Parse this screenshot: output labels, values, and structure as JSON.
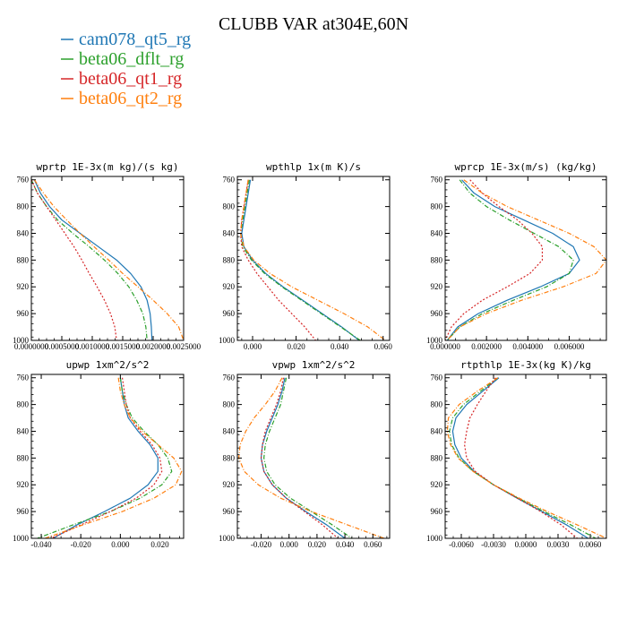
{
  "figure": {
    "title": "CLUBB VAR at304E,60N"
  },
  "colors": {
    "cam078_qt5_rg": "#1f77b4",
    "beta06_dflt_rg": "#2ca02c",
    "beta06_qt1_rg": "#d62728",
    "beta06_qt2_rg": "#ff7f0e"
  },
  "legend": [
    {
      "name": "cam078_qt5_rg",
      "color": "#1f77b4"
    },
    {
      "name": "beta06_dflt_rg",
      "color": "#2ca02c"
    },
    {
      "name": "beta06_qt1_rg",
      "color": "#d62728"
    },
    {
      "name": "beta06_qt2_rg",
      "color": "#ff7f0e"
    }
  ],
  "chart_data": [
    {
      "type": "line",
      "title": "wprtp  1E-3x(m kg)/(s kg)",
      "xlim": [
        0,
        0.0025
      ],
      "ylim": [
        1000,
        755
      ],
      "xticks": [
        0,
        0.0005,
        0.001,
        0.0015,
        0.002,
        0.0025
      ],
      "xticklabels": [
        "0.0000000",
        "0.0005000",
        "0.0010000",
        "0.0015000",
        "0.0020000",
        "0.0025000"
      ],
      "yticks": [
        760,
        800,
        840,
        880,
        920,
        960,
        1000
      ],
      "y": [
        760,
        780,
        800,
        820,
        840,
        860,
        880,
        900,
        920,
        940,
        960,
        980,
        1000
      ],
      "series": [
        {
          "name": "cam078_qt5_rg",
          "values": [
            5e-05,
            0.00015,
            0.0003,
            0.0005,
            0.0008,
            0.0011,
            0.0014,
            0.00163,
            0.0018,
            0.0019,
            0.00195,
            0.00197,
            0.00198
          ]
        },
        {
          "name": "beta06_dflt_rg",
          "values": [
            0.0,
            0.0001,
            0.00025,
            0.00043,
            0.00068,
            0.00095,
            0.0012,
            0.00142,
            0.0016,
            0.00173,
            0.00183,
            0.00188,
            0.0019
          ]
        },
        {
          "name": "beta06_qt1_rg",
          "values": [
            0.0,
            0.0001,
            0.00025,
            0.0004,
            0.00055,
            0.0007,
            0.00083,
            0.00095,
            0.00108,
            0.0012,
            0.0013,
            0.00137,
            0.0014
          ]
        },
        {
          "name": "beta06_qt2_rg",
          "values": [
            5e-05,
            0.0002,
            0.00037,
            0.00058,
            0.0008,
            0.00103,
            0.00127,
            0.0015,
            0.00175,
            0.002,
            0.00223,
            0.00242,
            0.0025
          ]
        }
      ]
    },
    {
      "type": "line",
      "title": "wpthlp  1x(m K)/s",
      "xlim": [
        -0.007,
        0.063
      ],
      "ylim": [
        1000,
        755
      ],
      "xticks": [
        0,
        0.02,
        0.04,
        0.06
      ],
      "xticklabels": [
        "0.000",
        "0.020",
        "0.040",
        "0.060"
      ],
      "yticks": [
        760,
        800,
        840,
        880,
        920,
        960,
        1000
      ],
      "y": [
        760,
        780,
        800,
        820,
        840,
        860,
        880,
        900,
        920,
        940,
        960,
        980,
        1000
      ],
      "series": [
        {
          "name": "cam078_qt5_rg",
          "values": [
            -0.001,
            -0.002,
            -0.003,
            -0.004,
            -0.005,
            -0.004,
            0.0,
            0.006,
            0.014,
            0.023,
            0.032,
            0.041,
            0.049
          ]
        },
        {
          "name": "beta06_dflt_rg",
          "values": [
            -0.0015,
            -0.0025,
            -0.0035,
            -0.0045,
            -0.0055,
            -0.0045,
            -0.0005,
            0.0055,
            0.0135,
            0.0225,
            0.0315,
            0.0405,
            0.0495
          ]
        },
        {
          "name": "beta06_qt1_rg",
          "values": [
            -0.002,
            -0.003,
            -0.004,
            -0.005,
            -0.0055,
            -0.005,
            -0.002,
            0.002,
            0.007,
            0.012,
            0.018,
            0.024,
            0.029
          ]
        },
        {
          "name": "beta06_qt2_rg",
          "values": [
            -0.002,
            -0.003,
            -0.004,
            -0.005,
            -0.0055,
            -0.004,
            0.0005,
            0.008,
            0.018,
            0.03,
            0.042,
            0.053,
            0.061
          ]
        }
      ]
    },
    {
      "type": "line",
      "title": "wprcp  1E-3x(m/s) (kg/kg)",
      "xlim": [
        0,
        0.0078
      ],
      "ylim": [
        1000,
        755
      ],
      "xticks": [
        0,
        0.002,
        0.004,
        0.006
      ],
      "xticklabels": [
        "0.000000",
        "0.002000",
        "0.004000",
        "0.006000"
      ],
      "yticks": [
        760,
        800,
        840,
        880,
        920,
        960,
        1000
      ],
      "y": [
        760,
        780,
        800,
        820,
        840,
        860,
        880,
        900,
        920,
        940,
        960,
        980,
        1000
      ],
      "series": [
        {
          "name": "cam078_qt5_rg",
          "values": [
            0.0008,
            0.0014,
            0.0024,
            0.0038,
            0.0052,
            0.0062,
            0.0065,
            0.006,
            0.0046,
            0.003,
            0.0016,
            0.0006,
            0.0001
          ]
        },
        {
          "name": "beta06_dflt_rg",
          "values": [
            0.0007,
            0.0012,
            0.002,
            0.0031,
            0.0043,
            0.0055,
            0.0062,
            0.006,
            0.0049,
            0.0033,
            0.0018,
            0.0007,
            0.0001
          ]
        },
        {
          "name": "beta06_qt1_rg",
          "values": [
            0.0012,
            0.0018,
            0.0026,
            0.0035,
            0.0042,
            0.0047,
            0.0047,
            0.0041,
            0.003,
            0.0018,
            0.0009,
            0.0003,
            0.0
          ]
        },
        {
          "name": "beta06_qt2_rg",
          "values": [
            0.0009,
            0.0018,
            0.003,
            0.0045,
            0.006,
            0.0072,
            0.0078,
            0.0073,
            0.0057,
            0.0037,
            0.002,
            0.0007,
            0.0001
          ]
        }
      ]
    },
    {
      "type": "line",
      "title": "upwp  1xm^2/s^2",
      "xlim": [
        -0.045,
        0.032
      ],
      "ylim": [
        1000,
        755
      ],
      "xticks": [
        -0.04,
        -0.02,
        0,
        0.02
      ],
      "xticklabels": [
        "-0.040",
        "-0.020",
        "0.000",
        "0.020"
      ],
      "yticks": [
        760,
        800,
        840,
        880,
        920,
        960,
        1000
      ],
      "y": [
        760,
        780,
        800,
        820,
        840,
        860,
        880,
        900,
        920,
        940,
        960,
        980,
        1000
      ],
      "series": [
        {
          "name": "cam078_qt5_rg",
          "values": [
            0.0,
            0.001,
            0.002,
            0.004,
            0.009,
            0.015,
            0.019,
            0.019,
            0.014,
            0.005,
            -0.008,
            -0.022,
            -0.034
          ]
        },
        {
          "name": "beta06_dflt_rg",
          "values": [
            0.0,
            0.001,
            0.003,
            0.006,
            0.012,
            0.019,
            0.024,
            0.026,
            0.021,
            0.01,
            -0.005,
            -0.024,
            -0.042
          ]
        },
        {
          "name": "beta06_qt1_rg",
          "values": [
            0.001,
            0.002,
            0.003,
            0.005,
            0.01,
            0.016,
            0.02,
            0.021,
            0.017,
            0.008,
            -0.005,
            -0.02,
            -0.035
          ]
        },
        {
          "name": "beta06_qt2_rg",
          "values": [
            -0.001,
            0.0,
            0.002,
            0.005,
            0.011,
            0.019,
            0.027,
            0.031,
            0.028,
            0.017,
            0.001,
            -0.019,
            -0.038
          ]
        }
      ]
    },
    {
      "type": "line",
      "title": "vpwp  1xm^2/s^2",
      "xlim": [
        -0.037,
        0.072
      ],
      "ylim": [
        1000,
        755
      ],
      "xticks": [
        -0.02,
        0,
        0.02,
        0.04,
        0.06
      ],
      "xticklabels": [
        "-0.020",
        "0.000",
        "0.020",
        "0.040",
        "0.060"
      ],
      "yticks": [
        760,
        800,
        840,
        880,
        920,
        960,
        1000
      ],
      "y": [
        760,
        780,
        800,
        820,
        840,
        860,
        880,
        900,
        920,
        940,
        960,
        980,
        1000
      ],
      "series": [
        {
          "name": "cam078_qt5_rg",
          "values": [
            -0.003,
            -0.005,
            -0.008,
            -0.012,
            -0.016,
            -0.019,
            -0.02,
            -0.018,
            -0.012,
            -0.002,
            0.012,
            0.027,
            0.04
          ]
        },
        {
          "name": "beta06_dflt_rg",
          "values": [
            -0.002,
            -0.004,
            -0.006,
            -0.01,
            -0.014,
            -0.017,
            -0.018,
            -0.016,
            -0.01,
            0.001,
            0.016,
            0.031,
            0.045
          ]
        },
        {
          "name": "beta06_qt1_rg",
          "values": [
            -0.004,
            -0.006,
            -0.009,
            -0.013,
            -0.017,
            -0.019,
            -0.02,
            -0.018,
            -0.012,
            -0.002,
            0.011,
            0.024,
            0.035
          ]
        },
        {
          "name": "beta06_qt2_rg",
          "values": [
            -0.005,
            -0.01,
            -0.017,
            -0.025,
            -0.031,
            -0.035,
            -0.036,
            -0.032,
            -0.022,
            -0.006,
            0.016,
            0.042,
            0.068
          ]
        }
      ]
    },
    {
      "type": "line",
      "title": "rtpthlp  1E-3x(kg K)/kg",
      "xlim": [
        -0.0075,
        0.0075
      ],
      "ylim": [
        1000,
        755
      ],
      "xticks": [
        -0.006,
        -0.003,
        0,
        0.003,
        0.006
      ],
      "xticklabels": [
        "-0.0060",
        "-0.0030",
        "0.0000",
        "0.0030",
        "0.0060"
      ],
      "yticks": [
        760,
        800,
        840,
        880,
        920,
        960,
        1000
      ],
      "y": [
        760,
        780,
        800,
        820,
        840,
        860,
        880,
        900,
        920,
        940,
        960,
        980,
        1000
      ],
      "series": [
        {
          "name": "cam078_qt5_rg",
          "values": [
            -0.0025,
            -0.004,
            -0.0055,
            -0.0065,
            -0.0068,
            -0.0066,
            -0.006,
            -0.0048,
            -0.003,
            -0.0008,
            0.0015,
            0.0038,
            0.0058
          ]
        },
        {
          "name": "beta06_dflt_rg",
          "values": [
            -0.0026,
            -0.0042,
            -0.0058,
            -0.0068,
            -0.0071,
            -0.0069,
            -0.0062,
            -0.0049,
            -0.003,
            -0.0007,
            0.0017,
            0.0042,
            0.0065
          ]
        },
        {
          "name": "beta06_qt1_rg",
          "values": [
            -0.0028,
            -0.0037,
            -0.0045,
            -0.0052,
            -0.0055,
            -0.0057,
            -0.0055,
            -0.0047,
            -0.003,
            -0.0008,
            0.0014,
            0.0033,
            0.0048
          ]
        },
        {
          "name": "beta06_qt2_rg",
          "values": [
            -0.0026,
            -0.0045,
            -0.0062,
            -0.0072,
            -0.0073,
            -0.007,
            -0.0063,
            -0.0049,
            -0.003,
            -0.0006,
            0.002,
            0.0048,
            0.0075
          ]
        }
      ]
    }
  ]
}
